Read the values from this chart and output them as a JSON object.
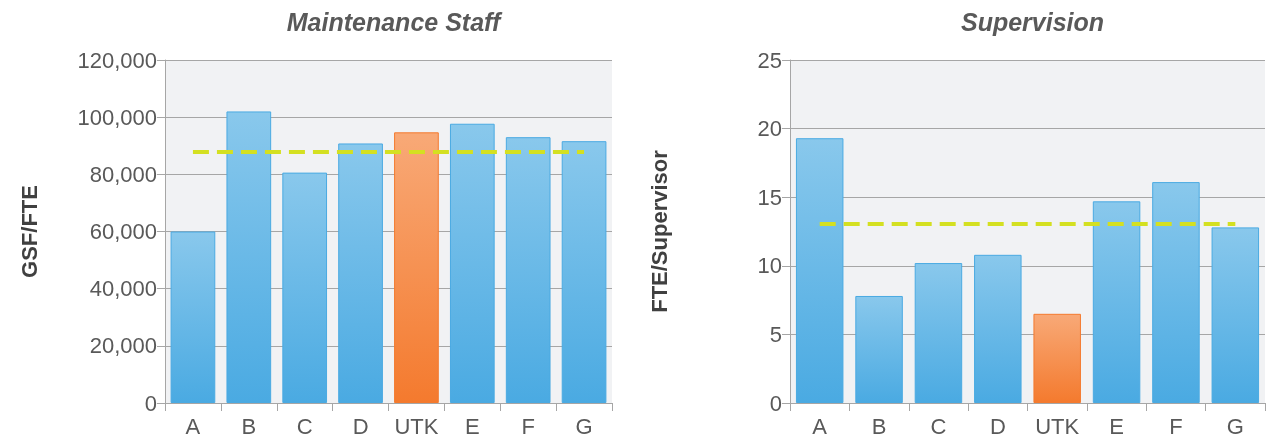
{
  "chart_data": [
    {
      "type": "bar",
      "title": "Maintenance Staff",
      "ylabel": "GSF/FTE",
      "categories": [
        "A",
        "B",
        "C",
        "D",
        "UTK",
        "E",
        "F",
        "G"
      ],
      "values": [
        60000,
        102000,
        80600,
        90800,
        94700,
        97700,
        93000,
        91600
      ],
      "colors": [
        "#4aaae2",
        "#4aaae2",
        "#4aaae2",
        "#4aaae2",
        "#f47a2e",
        "#4aaae2",
        "#4aaae2",
        "#4aaae2"
      ],
      "ylim": [
        0,
        120000
      ],
      "yticks": [
        0,
        {
          "value": 20000,
          "label": "20,000"
        },
        {
          "value": 40000,
          "label": "40,000"
        },
        {
          "value": 60000,
          "label": "60,000"
        },
        {
          "value": 80000,
          "label": "80,000"
        },
        {
          "value": 100000,
          "label": "100,000"
        },
        {
          "value": 120000,
          "label": "120,000"
        }
      ],
      "grid": "y",
      "ref_lines": [
        {
          "axis": "y",
          "value": 88000,
          "color": "#d4e021",
          "line_style": "dashed"
        }
      ]
    },
    {
      "type": "bar",
      "title": "Supervision",
      "ylabel": "FTE/Supervisor",
      "categories": [
        "A",
        "B",
        "C",
        "D",
        "UTK",
        "E",
        "F",
        "G"
      ],
      "values": [
        19.3,
        7.8,
        10.2,
        10.8,
        6.5,
        14.7,
        16.1,
        12.8
      ],
      "colors": [
        "#4aaae2",
        "#4aaae2",
        "#4aaae2",
        "#4aaae2",
        "#f47a2e",
        "#4aaae2",
        "#4aaae2",
        "#4aaae2"
      ],
      "ylim": [
        0,
        25
      ],
      "yticks": [
        0,
        5,
        10,
        15,
        20,
        25
      ],
      "grid": "y",
      "ref_lines": [
        {
          "axis": "y",
          "value": 13.1,
          "color": "#d4e021",
          "line_style": "dashed"
        }
      ]
    }
  ]
}
